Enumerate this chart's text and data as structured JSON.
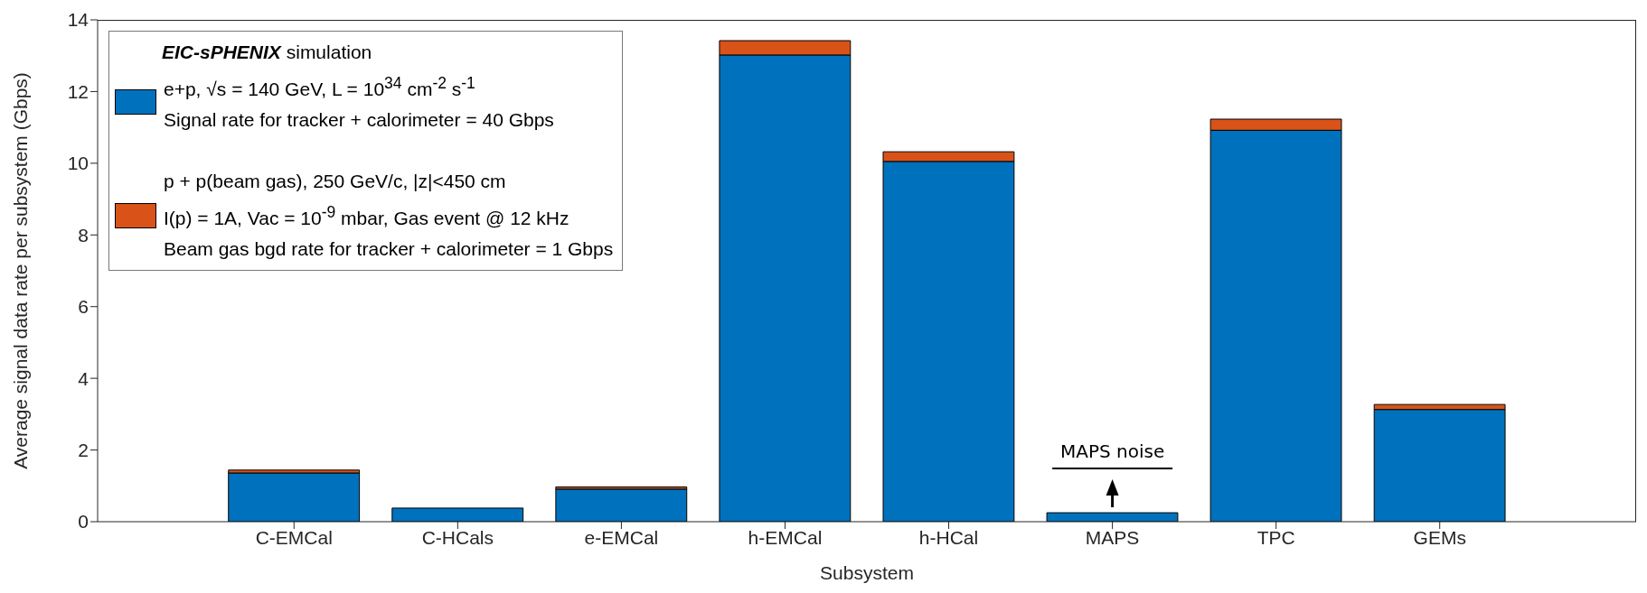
{
  "chart_data": {
    "type": "bar",
    "stacked": true,
    "xlabel": "Subsystem",
    "ylabel": "Average signal data rate per subsystem (Gbps)",
    "categories": [
      "C-EMCal",
      "C-HCals",
      "e-EMCal",
      "h-EMCal",
      "h-HCal",
      "MAPS",
      "TPC",
      "GEMs"
    ],
    "series": [
      {
        "name": "e+p, √s = 140 GeV, L = 10$^{34}$ cm$^{-2}$ s$^{-1}$\nSignal rate for tracker + calorimeter = 40 Gbps",
        "color": "#0072bd",
        "values": [
          1.36,
          0.38,
          0.91,
          13.02,
          10.05,
          0.25,
          10.92,
          3.13
        ]
      },
      {
        "name": "p + p(beam gas), 250 GeV/c, |z|<450 cm\nI(p) = 1A, Vac = 10$^{-9}$ mbar, Gas event @ 12 kHz\nBeam gas bgd rate for tracker + calorimeter = 1 Gbps",
        "color": "#d95319",
        "values": [
          0.08,
          0,
          0.06,
          0.4,
          0.27,
          0,
          0.31,
          0.14
        ]
      }
    ],
    "legend_title": "EIC-sPHENIX simulation",
    "legend": "top left",
    "ylim": [
      0,
      14
    ],
    "yticks": [
      0,
      2,
      4,
      6,
      8,
      10,
      12,
      14
    ],
    "annotations": [
      "MAPS noise"
    ]
  }
}
